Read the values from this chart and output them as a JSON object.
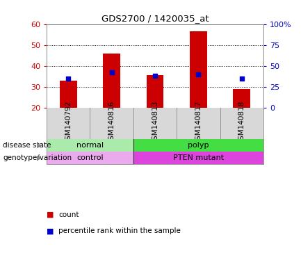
{
  "title": "GDS2700 / 1420035_at",
  "samples": [
    "GSM140792",
    "GSM140816",
    "GSM140813",
    "GSM140817",
    "GSM140818"
  ],
  "counts": [
    33,
    46,
    35.5,
    56.5,
    29
  ],
  "percentile_ranks": [
    35,
    42,
    38,
    40,
    35
  ],
  "ymin": 20,
  "ymax": 60,
  "yticks": [
    20,
    30,
    40,
    50,
    60
  ],
  "y2ticks": [
    0,
    25,
    50,
    75,
    100
  ],
  "y2labels": [
    "0",
    "25",
    "50",
    "75",
    "100%"
  ],
  "bar_color": "#cc0000",
  "dot_color": "#0000cc",
  "disease_state": [
    {
      "label": "normal",
      "color": "#aaeaaa",
      "start": 0,
      "end": 2
    },
    {
      "label": "polyp",
      "color": "#44dd44",
      "start": 2,
      "end": 5
    }
  ],
  "genotype": [
    {
      "label": "control",
      "color": "#eaaaee",
      "start": 0,
      "end": 2
    },
    {
      "label": "PTEN mutant",
      "color": "#dd44dd",
      "start": 2,
      "end": 5
    }
  ],
  "label_disease": "disease state",
  "label_genotype": "genotype/variation",
  "legend_count": "count",
  "legend_pct": "percentile rank within the sample",
  "sample_bg": "#d8d8d8",
  "plot_bg": "#ffffff",
  "fig_bg": "#ffffff"
}
